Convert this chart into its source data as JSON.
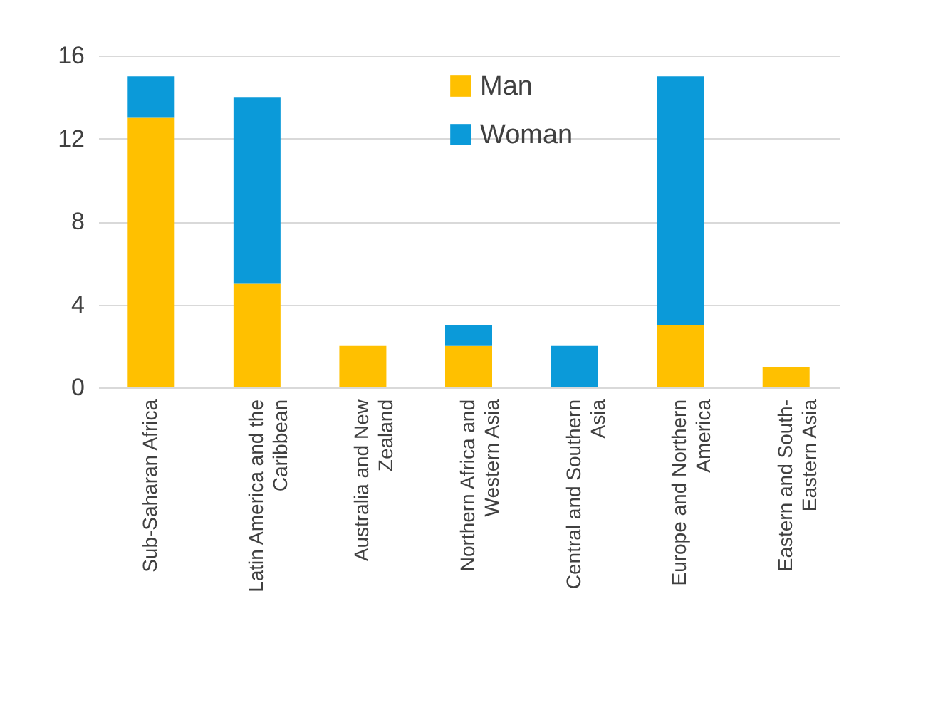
{
  "chart_data": {
    "type": "bar",
    "stacked": true,
    "categories": [
      "Sub-Saharan Africa",
      "Latin America and the Caribbean",
      "Australia and New Zealand",
      "Northern Africa and Western Asia",
      "Central and Southern Asia",
      "Europe and Northern America",
      "Eastern and South-Eastern Asia"
    ],
    "series": [
      {
        "name": "Man",
        "color": "#ffc000",
        "values": [
          13,
          5,
          2,
          2,
          0,
          3,
          1
        ]
      },
      {
        "name": "Woman",
        "color": "#0b9ad9",
        "values": [
          2,
          9,
          0,
          1,
          2,
          12,
          0
        ]
      }
    ],
    "ylim": [
      0,
      16
    ],
    "yticks": [
      0,
      4,
      8,
      12,
      16
    ],
    "grid": "y",
    "legend": "top right"
  }
}
